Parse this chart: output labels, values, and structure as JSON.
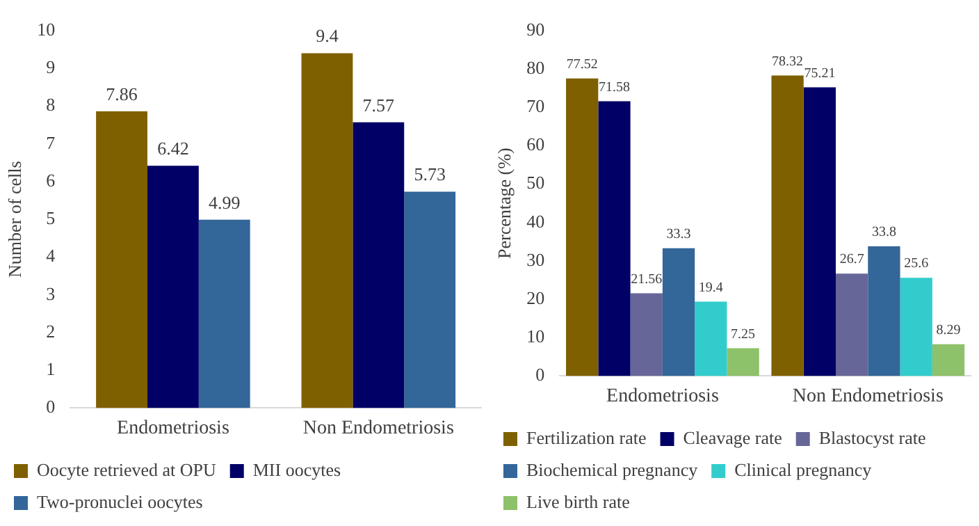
{
  "chart_data": [
    {
      "type": "bar",
      "ylabel": "Number of cells",
      "categories": [
        "Endometriosis",
        "Non Endometriosis"
      ],
      "ylim": [
        0,
        10
      ],
      "yticks": [
        0,
        1,
        2,
        3,
        4,
        5,
        6,
        7,
        8,
        9,
        10
      ],
      "grid": false,
      "legend": "bottom",
      "data_labels": true,
      "series": [
        {
          "name": "Oocyte retrieved at OPU",
          "color": "#7f6000",
          "values": [
            7.86,
            9.4
          ]
        },
        {
          "name": "MII oocytes",
          "color": "#000066",
          "values": [
            6.42,
            7.57
          ]
        },
        {
          "name": "Two-pronuclei oocytes",
          "color": "#336699",
          "values": [
            4.99,
            5.73
          ]
        }
      ]
    },
    {
      "type": "bar",
      "ylabel": "Percentage (%)",
      "categories": [
        "Endometriosis",
        "Non Endometriosis"
      ],
      "ylim": [
        0,
        90
      ],
      "yticks": [
        0,
        10,
        20,
        30,
        40,
        50,
        60,
        70,
        80,
        90
      ],
      "grid": false,
      "legend": "bottom",
      "data_labels": true,
      "series": [
        {
          "name": "Fertilization rate",
          "color": "#7f6000",
          "values": [
            77.52,
            78.32
          ]
        },
        {
          "name": "Cleavage rate",
          "color": "#000066",
          "values": [
            71.58,
            75.21
          ]
        },
        {
          "name": "Blastocyst rate",
          "color": "#666699",
          "values": [
            21.56,
            26.7
          ]
        },
        {
          "name": "Biochemical pregnancy",
          "color": "#336699",
          "values": [
            33.3,
            33.8
          ]
        },
        {
          "name": "Clinical pregnancy",
          "color": "#33cccc",
          "values": [
            19.4,
            25.6
          ]
        },
        {
          "name": "Live birth rate",
          "color": "#8dc16a",
          "values": [
            7.25,
            8.29
          ]
        }
      ]
    }
  ]
}
